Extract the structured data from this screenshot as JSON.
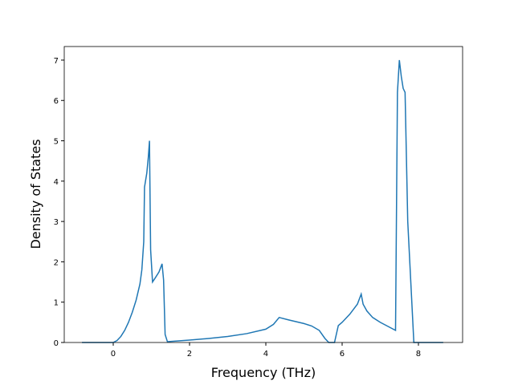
{
  "chart_data": {
    "type": "line",
    "x_label": "Frequency (THz)",
    "y_label": "Density of States",
    "xlim": [
      -1.284,
      9.158
    ],
    "ylim": [
      0,
      7.337
    ],
    "xticks": [
      0,
      2,
      4,
      6,
      8
    ],
    "yticks": [
      0,
      1,
      2,
      3,
      4,
      5,
      6,
      7
    ],
    "series": [
      {
        "color": "#1f77b4",
        "x": [
          -0.82,
          0,
          0.1,
          0.2,
          0.3,
          0.4,
          0.5,
          0.6,
          0.7,
          0.75,
          0.8,
          0.82,
          0.88,
          0.92,
          0.95,
          0.98,
          1.03,
          1.1,
          1.2,
          1.28,
          1.32,
          1.36,
          1.42,
          2,
          2.5,
          3,
          3.5,
          4,
          4.2,
          4.35,
          4.6,
          5,
          5.2,
          5.4,
          5.55,
          5.65,
          5.8,
          5.9,
          6.0,
          6.2,
          6.4,
          6.5,
          6.55,
          6.65,
          6.8,
          7.0,
          7.2,
          7.4,
          7.45,
          7.5,
          7.55,
          7.6,
          7.65,
          7.72,
          7.8,
          7.88,
          8,
          8.65
        ],
        "values": [
          0,
          0,
          0.05,
          0.15,
          0.3,
          0.5,
          0.75,
          1.05,
          1.45,
          1.8,
          2.5,
          3.85,
          4.2,
          4.6,
          5.0,
          2.3,
          1.5,
          1.6,
          1.75,
          1.95,
          1.55,
          0.2,
          0.02,
          0.06,
          0.1,
          0.15,
          0.22,
          0.33,
          0.45,
          0.62,
          0.56,
          0.47,
          0.41,
          0.3,
          0.1,
          0,
          0,
          0.42,
          0.5,
          0.7,
          0.95,
          1.2,
          0.95,
          0.78,
          0.62,
          0.5,
          0.4,
          0.3,
          6.2,
          7.0,
          6.6,
          6.3,
          6.2,
          3.0,
          1.5,
          0,
          0,
          0
        ]
      }
    ]
  }
}
